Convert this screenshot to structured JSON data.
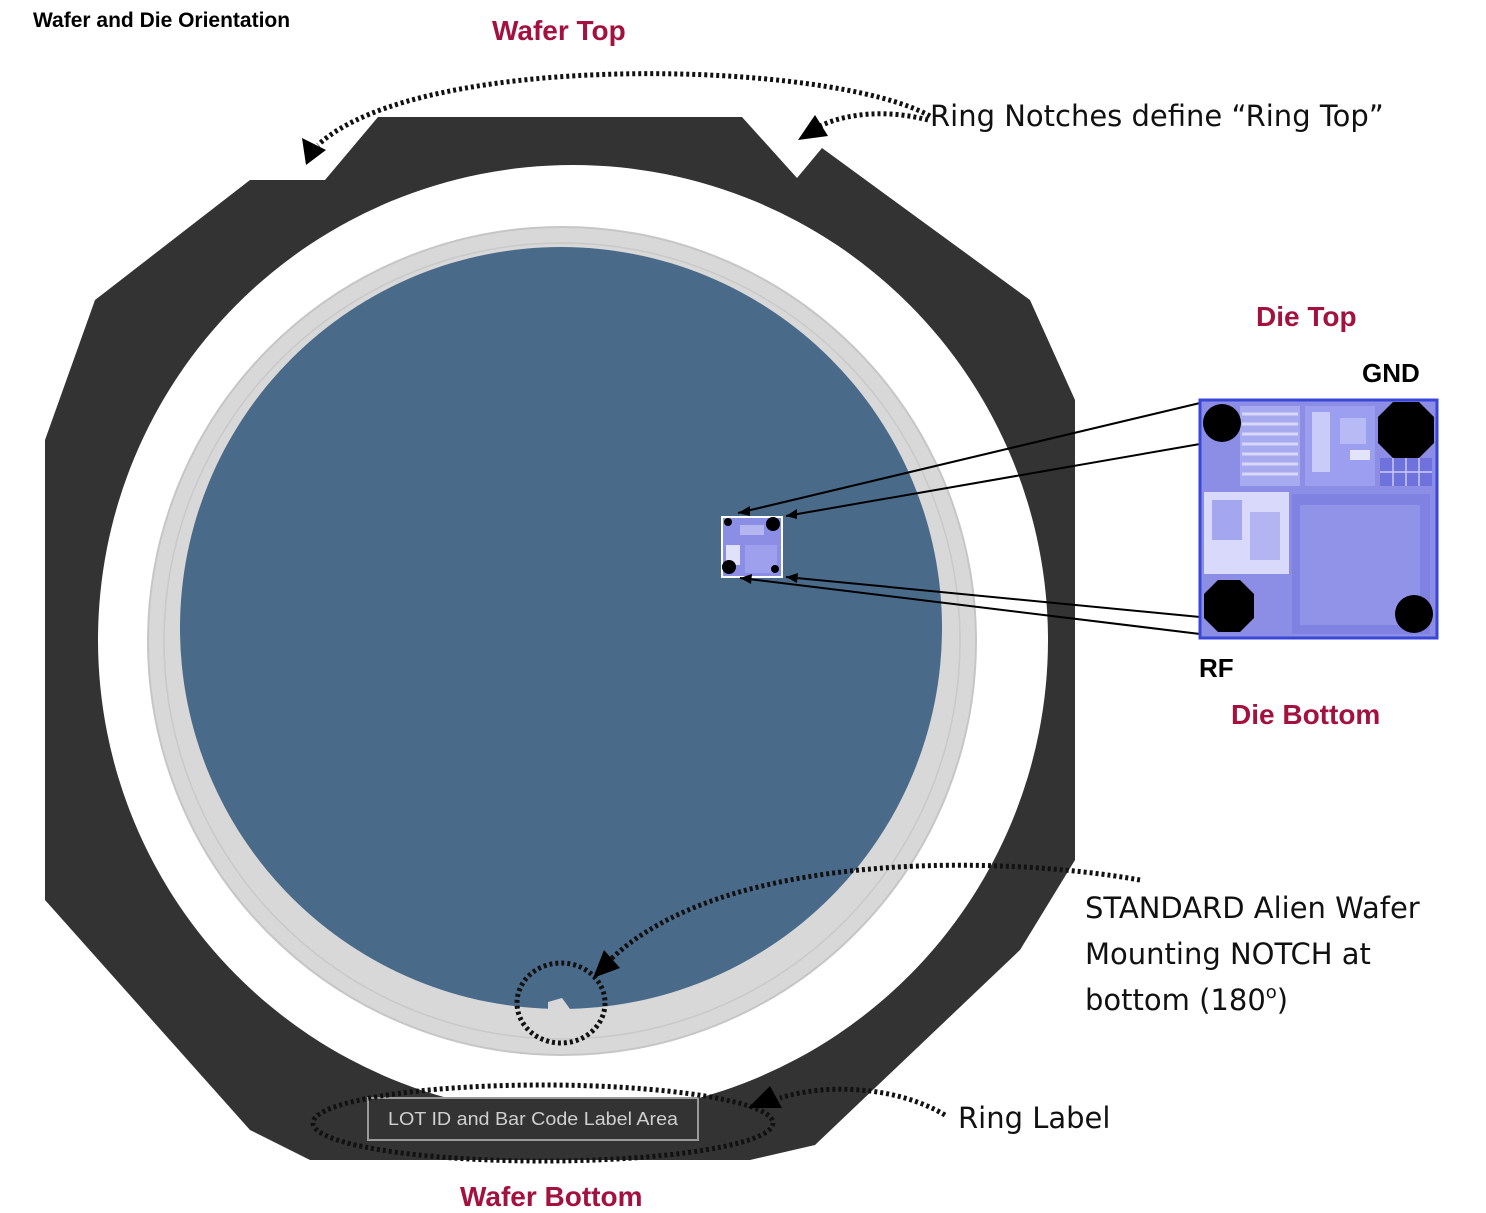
{
  "title": "Wafer and Die Orientation",
  "wafer_top_label": "Wafer Top",
  "wafer_bottom_label": "Wafer Bottom",
  "die_top_label": "Die Top",
  "die_bottom_label": "Die Bottom",
  "gnd_label": "GND",
  "rf_label": "RF",
  "ring_notch_note": "Ring Notches define “Ring Top”",
  "notch_note_lines": [
    "STANDARD Alien Wafer",
    "Mounting NOTCH at",
    "bottom (180"
  ],
  "notch_note_degree": "o",
  "notch_note_close": ")",
  "ring_label_note": "Ring Label",
  "label_area_text": "LOT ID and Bar Code Label Area",
  "colors": {
    "frame": "#333333",
    "wafer": "#4a6a8a",
    "wafer_edge": "#d8d8d8",
    "label_accent": "#a3123f",
    "die": "#8c8ee6"
  }
}
